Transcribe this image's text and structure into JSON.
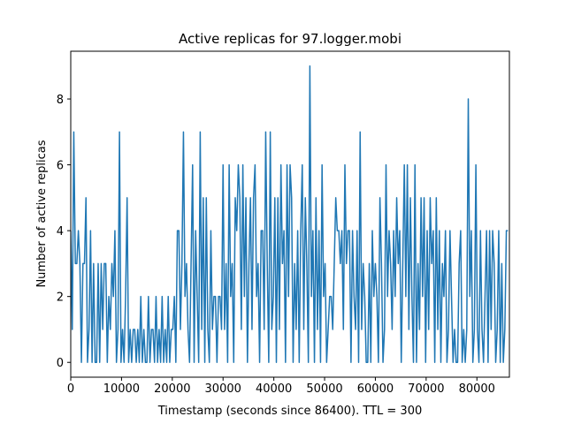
{
  "chart_data": {
    "type": "line",
    "title": "Active replicas for 97.logger.mobi",
    "xlabel": "Timestamp (seconds since 86400). TTL = 300",
    "ylabel": "Number of active replicas",
    "xlim": [
      0,
      86400
    ],
    "ylim": [
      -0.45,
      9.45
    ],
    "xticks": [
      0,
      10000,
      20000,
      30000,
      40000,
      50000,
      60000,
      70000,
      80000
    ],
    "yticks": [
      0,
      2,
      4,
      6,
      8
    ],
    "x": [
      0,
      300,
      600,
      900,
      1200,
      1500,
      1800,
      2100,
      2400,
      2700,
      3000,
      3300,
      3600,
      3900,
      4200,
      4500,
      4800,
      5100,
      5400,
      5700,
      6000,
      6300,
      6600,
      6900,
      7200,
      7500,
      7800,
      8100,
      8400,
      8700,
      9000,
      9300,
      9600,
      9900,
      10200,
      10500,
      10800,
      11100,
      11400,
      11700,
      12000,
      12300,
      12600,
      12900,
      13200,
      13500,
      13800,
      14100,
      14400,
      14700,
      15000,
      15300,
      15600,
      15900,
      16200,
      16500,
      16800,
      17100,
      17400,
      17700,
      18000,
      18300,
      18600,
      18900,
      19200,
      19500,
      19800,
      20100,
      20400,
      20700,
      21000,
      21300,
      21600,
      21900,
      22200,
      22500,
      22800,
      23100,
      23400,
      23700,
      24000,
      24300,
      24600,
      24900,
      25200,
      25500,
      25800,
      26100,
      26400,
      26700,
      27000,
      27300,
      27600,
      27900,
      28200,
      28500,
      28800,
      29100,
      29400,
      29700,
      30000,
      30300,
      30600,
      30900,
      31200,
      31500,
      31800,
      32100,
      32400,
      32700,
      33000,
      33300,
      33600,
      33900,
      34200,
      34500,
      34800,
      35100,
      35400,
      35700,
      36000,
      36300,
      36600,
      36900,
      37200,
      37500,
      37800,
      38100,
      38400,
      38700,
      39000,
      39300,
      39600,
      39900,
      40200,
      40500,
      40800,
      41100,
      41400,
      41700,
      42000,
      42300,
      42600,
      42900,
      43200,
      43500,
      43800,
      44100,
      44400,
      44700,
      45000,
      45300,
      45600,
      45900,
      46200,
      46500,
      46800,
      47100,
      47400,
      47700,
      48000,
      48300,
      48600,
      48900,
      49200,
      49500,
      49800,
      50100,
      50400,
      50700,
      51000,
      51300,
      51600,
      51900,
      52200,
      52500,
      52800,
      53100,
      53400,
      53700,
      54000,
      54300,
      54600,
      54900,
      55200,
      55500,
      55800,
      56100,
      56400,
      56700,
      57000,
      57300,
      57600,
      57900,
      58200,
      58500,
      58800,
      59100,
      59400,
      59700,
      60000,
      60300,
      60600,
      60900,
      61200,
      61500,
      61800,
      62100,
      62400,
      62700,
      63000,
      63300,
      63600,
      63900,
      64200,
      64500,
      64800,
      65100,
      65400,
      65700,
      66000,
      66300,
      66600,
      66900,
      67200,
      67500,
      67800,
      68100,
      68400,
      68700,
      69000,
      69300,
      69600,
      69900,
      70200,
      70500,
      70800,
      71100,
      71400,
      71700,
      72000,
      72300,
      72600,
      72900,
      73200,
      73500,
      73800,
      74100,
      74400,
      74700,
      75000,
      75300,
      75600,
      75900,
      76200,
      76500,
      76800,
      77100,
      77400,
      77700,
      78000,
      78300,
      78600,
      78900,
      79200,
      79500,
      79800,
      80100,
      80400,
      80700,
      81000,
      81300,
      81600,
      81900,
      82200,
      82500,
      82800,
      83100,
      83400,
      83700,
      84000,
      84300,
      84600,
      84900,
      85200,
      85500,
      85800,
      86100
    ],
    "series": [
      {
        "name": "replicas",
        "color": "#1f77b4",
        "values": [
          4,
          1,
          7,
          3,
          3,
          4,
          3,
          0,
          3,
          3,
          5,
          0,
          1,
          4,
          0,
          3,
          0,
          0,
          3,
          0,
          3,
          1,
          3,
          3,
          0,
          2,
          1,
          3,
          2,
          4,
          0,
          1,
          7,
          0,
          1,
          0,
          2,
          5,
          0,
          1,
          0,
          1,
          1,
          0,
          1,
          0,
          2,
          0,
          1,
          0,
          0,
          2,
          0,
          1,
          1,
          0,
          2,
          0,
          1,
          0,
          2,
          0,
          1,
          0,
          2,
          0,
          1,
          1,
          2,
          0,
          4,
          4,
          1,
          3,
          7,
          2,
          3,
          1,
          0,
          3,
          6,
          0,
          4,
          2,
          0,
          7,
          1,
          5,
          0,
          5,
          1,
          0,
          4,
          1,
          2,
          2,
          0,
          2,
          2,
          1,
          6,
          1,
          3,
          0,
          6,
          2,
          3,
          0,
          5,
          4,
          6,
          5,
          1,
          6,
          2,
          5,
          0,
          3,
          5,
          1,
          5,
          6,
          2,
          3,
          0,
          4,
          4,
          1,
          7,
          3,
          0,
          7,
          1,
          2,
          5,
          0,
          5,
          1,
          6,
          3,
          4,
          0,
          6,
          2,
          6,
          5,
          0,
          3,
          1,
          4,
          0,
          4,
          6,
          1,
          5,
          3,
          0,
          9,
          2,
          4,
          0,
          5,
          1,
          4,
          0,
          6,
          2,
          3,
          0,
          1,
          2,
          2,
          1,
          3,
          5,
          4,
          4,
          3,
          4,
          1,
          6,
          3,
          4,
          4,
          0,
          4,
          2,
          1,
          4,
          0,
          7,
          1,
          3,
          2,
          0,
          0,
          3,
          0,
          4,
          2,
          3,
          2,
          0,
          5,
          3,
          0,
          1,
          6,
          2,
          4,
          3,
          1,
          4,
          2,
          5,
          3,
          4,
          0,
          3,
          6,
          2,
          6,
          1,
          5,
          2,
          0,
          6,
          0,
          3,
          1,
          5,
          2,
          5,
          0,
          4,
          1,
          5,
          3,
          4,
          0,
          5,
          1,
          4,
          0,
          3,
          2,
          4,
          0,
          1,
          4,
          2,
          0,
          1,
          0,
          0,
          3,
          4,
          0,
          1,
          0,
          1,
          8,
          2,
          4,
          0,
          1,
          6,
          1,
          0,
          4,
          1,
          0,
          2,
          4,
          0,
          4,
          1,
          4,
          3,
          0,
          1,
          4,
          0,
          3,
          0,
          1,
          4,
          4
        ]
      }
    ]
  }
}
